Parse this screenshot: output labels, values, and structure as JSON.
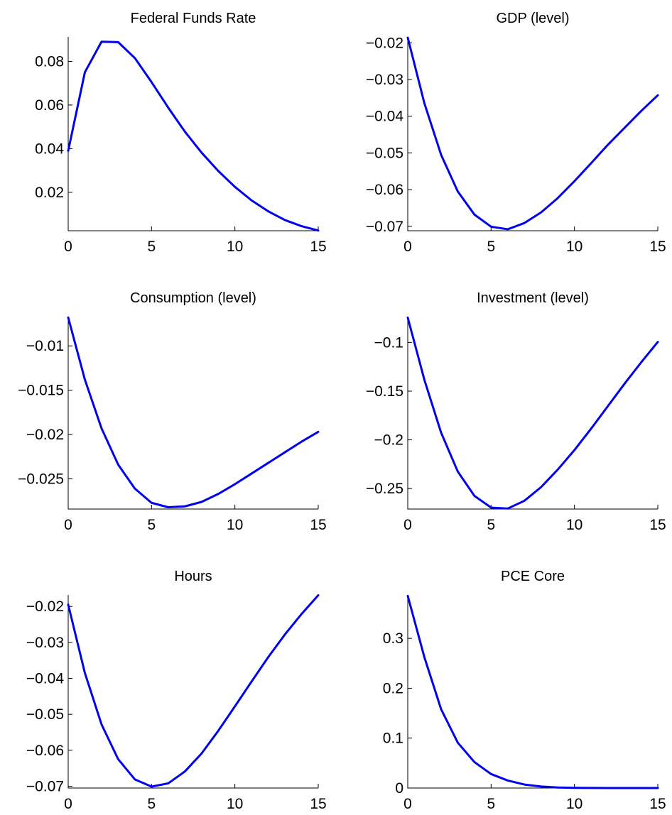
{
  "chart_data": [
    {
      "type": "line",
      "title": "Federal Funds Rate",
      "x": [
        0,
        1,
        2,
        3,
        4,
        5,
        6,
        7,
        8,
        9,
        10,
        11,
        12,
        13,
        14,
        15
      ],
      "series": [
        {
          "values": [
            0.039,
            0.075,
            0.089,
            0.0888,
            0.0815,
            0.0705,
            0.0588,
            0.0478,
            0.0382,
            0.0298,
            0.0225,
            0.0163,
            0.0113,
            0.0073,
            0.0045,
            0.0025
          ],
          "color": "#0000ee"
        }
      ],
      "xlim": [
        0,
        15
      ],
      "ylim": [
        0.0024,
        0.0912
      ],
      "xticks": [
        "0",
        "5",
        "10",
        "15"
      ],
      "xtick_values": [
        0,
        5,
        10,
        15
      ],
      "yticks": [
        "0.02",
        "0.04",
        "0.06",
        "0.08"
      ],
      "ytick_values": [
        0.02,
        0.04,
        0.06,
        0.08
      ],
      "xlabel": "",
      "ylabel": "",
      "grid": false
    },
    {
      "type": "line",
      "title": "GDP (level)",
      "x": [
        0,
        1,
        2,
        3,
        4,
        5,
        6,
        7,
        8,
        9,
        10,
        11,
        12,
        13,
        14,
        15
      ],
      "series": [
        {
          "values": [
            -0.0186,
            -0.0365,
            -0.0505,
            -0.0605,
            -0.0668,
            -0.0701,
            -0.0708,
            -0.0691,
            -0.0662,
            -0.0623,
            -0.0577,
            -0.0528,
            -0.0478,
            -0.0432,
            -0.0386,
            -0.0343
          ],
          "color": "#0000ee"
        }
      ],
      "xlim": [
        0,
        15
      ],
      "ylim": [
        -0.0712,
        -0.0184
      ],
      "xticks": [
        "0",
        "5",
        "10",
        "15"
      ],
      "xtick_values": [
        0,
        5,
        10,
        15
      ],
      "yticks": [
        "−0.02",
        "−0.03",
        "−0.04",
        "−0.05",
        "−0.06",
        "−0.07"
      ],
      "ytick_values": [
        -0.02,
        -0.03,
        -0.04,
        -0.05,
        -0.06,
        -0.07
      ],
      "xlabel": "",
      "ylabel": "",
      "grid": false
    },
    {
      "type": "line",
      "title": "Consumption (level)",
      "x": [
        0,
        1,
        2,
        3,
        4,
        5,
        6,
        7,
        8,
        9,
        10,
        11,
        12,
        13,
        14,
        15
      ],
      "series": [
        {
          "values": [
            -0.0068,
            -0.0138,
            -0.0193,
            -0.0234,
            -0.0261,
            -0.0277,
            -0.0282,
            -0.0281,
            -0.0276,
            -0.0267,
            -0.0256,
            -0.0244,
            -0.0232,
            -0.022,
            -0.0208,
            -0.0197
          ],
          "color": "#0000ee"
        }
      ],
      "xlim": [
        0,
        15
      ],
      "ylim": [
        -0.0284,
        -0.0067
      ],
      "xticks": [
        "0",
        "5",
        "10",
        "15"
      ],
      "xtick_values": [
        0,
        5,
        10,
        15
      ],
      "yticks": [
        "−0.01",
        "−0.015",
        "−0.02",
        "−0.025"
      ],
      "ytick_values": [
        -0.01,
        -0.015,
        -0.02,
        -0.025
      ],
      "xlabel": "",
      "ylabel": "",
      "grid": false
    },
    {
      "type": "line",
      "title": "Investment (level)",
      "x": [
        0,
        1,
        2,
        3,
        4,
        5,
        6,
        7,
        8,
        9,
        10,
        11,
        12,
        13,
        14,
        15
      ],
      "series": [
        {
          "values": [
            -0.0745,
            -0.1385,
            -0.1925,
            -0.2325,
            -0.2575,
            -0.2695,
            -0.2705,
            -0.2625,
            -0.2485,
            -0.2305,
            -0.2105,
            -0.1885,
            -0.1655,
            -0.1425,
            -0.1205,
            -0.0995
          ],
          "color": "#0000ee"
        }
      ],
      "xlim": [
        0,
        15
      ],
      "ylim": [
        -0.271,
        -0.0735
      ],
      "xticks": [
        "0",
        "5",
        "10",
        "15"
      ],
      "xtick_values": [
        0,
        5,
        10,
        15
      ],
      "yticks": [
        "−0.1",
        "−0.15",
        "−0.2",
        "−0.25"
      ],
      "ytick_values": [
        -0.1,
        -0.15,
        -0.2,
        -0.25
      ],
      "xlabel": "",
      "ylabel": "",
      "grid": false
    },
    {
      "type": "line",
      "title": "Hours",
      "x": [
        0,
        1,
        2,
        3,
        4,
        5,
        6,
        7,
        8,
        9,
        10,
        11,
        12,
        13,
        14,
        15
      ],
      "series": [
        {
          "values": [
            -0.0195,
            -0.0385,
            -0.0528,
            -0.0625,
            -0.0681,
            -0.0701,
            -0.0692,
            -0.0659,
            -0.0609,
            -0.0546,
            -0.0478,
            -0.0409,
            -0.0341,
            -0.0278,
            -0.0221,
            -0.0169
          ],
          "color": "#0000ee"
        }
      ],
      "xlim": [
        0,
        15
      ],
      "ylim": [
        -0.0705,
        -0.0168
      ],
      "xticks": [
        "0",
        "5",
        "10",
        "15"
      ],
      "xtick_values": [
        0,
        5,
        10,
        15
      ],
      "yticks": [
        "−0.02",
        "−0.03",
        "−0.04",
        "−0.05",
        "−0.06",
        "−0.07"
      ],
      "ytick_values": [
        -0.02,
        -0.03,
        -0.04,
        -0.05,
        -0.06,
        -0.07
      ],
      "xlabel": "",
      "ylabel": "",
      "grid": false
    },
    {
      "type": "line",
      "title": "PCE Core",
      "x": [
        0,
        1,
        2,
        3,
        4,
        5,
        6,
        7,
        8,
        9,
        10,
        11,
        12,
        13,
        14,
        15
      ],
      "series": [
        {
          "values": [
            0.385,
            0.262,
            0.158,
            0.091,
            0.052,
            0.028,
            0.015,
            0.007,
            0.003,
            0.001,
            0.0003,
            0.0001,
            0,
            0,
            0,
            0
          ],
          "color": "#0000ee"
        }
      ],
      "xlim": [
        0,
        15
      ],
      "ylim": [
        0,
        0.387
      ],
      "xticks": [
        "0",
        "5",
        "10",
        "15"
      ],
      "xtick_values": [
        0,
        5,
        10,
        15
      ],
      "yticks": [
        "0",
        "0.1",
        "0.2",
        "0.3"
      ],
      "ytick_values": [
        0,
        0.1,
        0.2,
        0.3
      ],
      "xlabel": "",
      "ylabel": "",
      "grid": false
    }
  ]
}
